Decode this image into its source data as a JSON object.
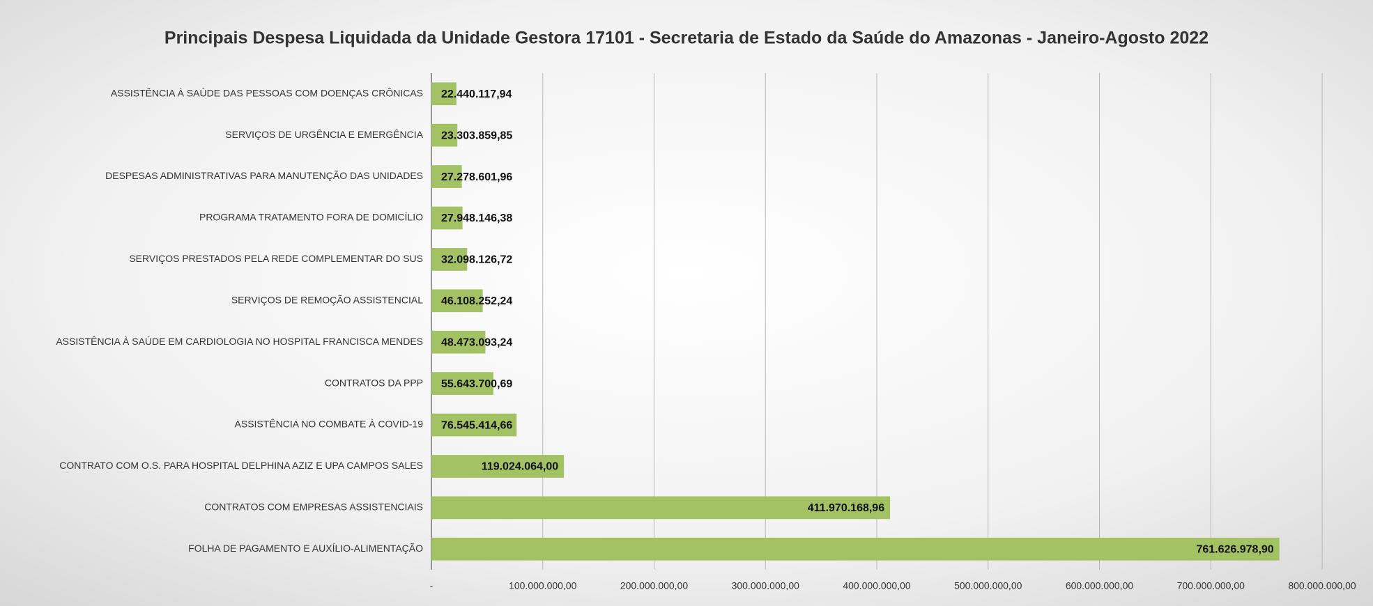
{
  "chart_data": {
    "type": "barh",
    "title": "Principais Despesa Liquidada da Unidade Gestora 17101 - Secretaria de Estado da Saúde do Amazonas - Janeiro-Agosto 2022",
    "categories": [
      "ASSISTÊNCIA À SAÚDE DAS PESSOAS COM DOENÇAS CRÔNICAS",
      "SERVIÇOS DE URGÊNCIA E EMERGÊNCIA",
      "DESPESAS ADMINISTRATIVAS PARA MANUTENÇÃO DAS UNIDADES",
      "PROGRAMA TRATAMENTO FORA DE DOMICÍLIO",
      "SERVIÇOS PRESTADOS PELA REDE COMPLEMENTAR DO SUS",
      "SERVIÇOS DE REMOÇÃO ASSISTENCIAL",
      "ASSISTÊNCIA À SAÚDE EM CARDIOLOGIA NO HOSPITAL FRANCISCA MENDES",
      "CONTRATOS DA PPP",
      "ASSISTÊNCIA NO COMBATE À COVID-19",
      "CONTRATO COM O.S. PARA HOSPITAL DELPHINA AZIZ E UPA CAMPOS SALES",
      "CONTRATOS COM EMPRESAS ASSISTENCIAIS",
      "FOLHA DE PAGAMENTO E AUXÍLIO-ALIMENTAÇÃO"
    ],
    "values": [
      22440117.94,
      23303859.85,
      27278601.96,
      27948146.38,
      32098126.72,
      46108252.24,
      48473093.24,
      55643700.69,
      76545414.66,
      119024064.0,
      411970168.96,
      761626978.9
    ],
    "value_labels": [
      "22.440.117,94",
      "23.303.859,85",
      "27.278.601,96",
      "27.948.146,38",
      "32.098.126,72",
      "46.108.252,24",
      "48.473.093,24",
      "55.643.700,69",
      "76.545.414,66",
      "119.024.064,00",
      "411.970.168,96",
      "761.626.978,90"
    ],
    "color": "#a3c264",
    "xlim": [
      0,
      800000000
    ],
    "xticks": [
      {
        "value": 0,
        "label": "-"
      },
      {
        "value": 100000000,
        "label": "100.000.000,00"
      },
      {
        "value": 200000000,
        "label": "200.000.000,00"
      },
      {
        "value": 300000000,
        "label": "300.000.000,00"
      },
      {
        "value": 400000000,
        "label": "400.000.000,00"
      },
      {
        "value": 500000000,
        "label": "500.000.000,00"
      },
      {
        "value": 600000000,
        "label": "600.000.000,00"
      },
      {
        "value": 700000000,
        "label": "700.000.000,00"
      },
      {
        "value": 800000000,
        "label": "800.000.000,00"
      }
    ],
    "grid": true
  }
}
